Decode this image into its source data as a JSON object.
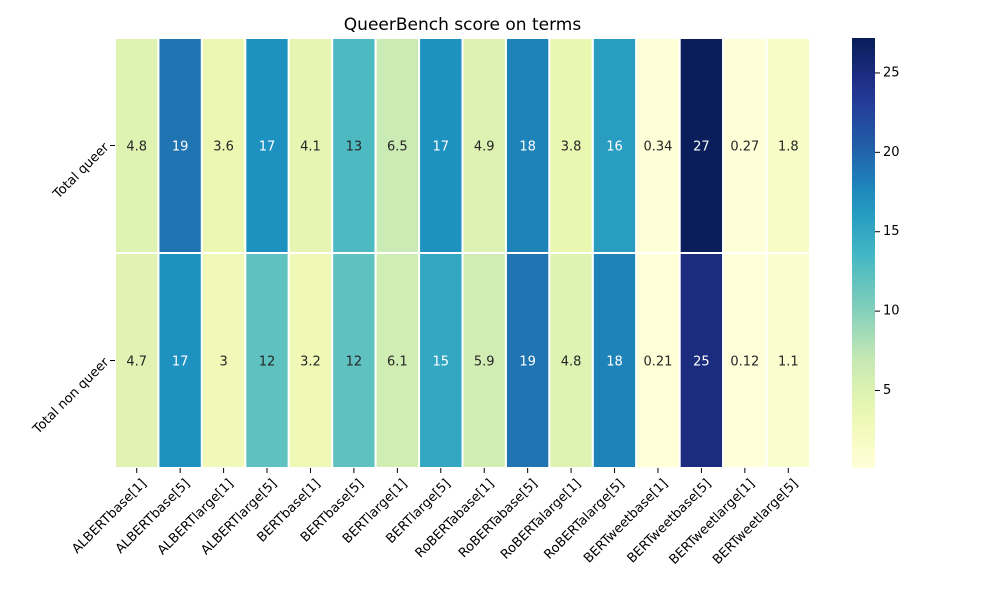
{
  "chart_data": {
    "type": "heatmap",
    "title": "QueerBench score on terms",
    "xlabel": "",
    "ylabel": "",
    "rows": [
      "Total queer",
      "Total non queer"
    ],
    "columns": [
      "ALBERTbase[1]",
      "ALBERTbase[5]",
      "ALBERTlarge[1]",
      "ALBERTlarge[5]",
      "BERTbase[1]",
      "BERTbase[5]",
      "BERTlarge[1]",
      "BERTlarge[5]",
      "RoBERTabase[1]",
      "RoBERTabase[5]",
      "RoBERTalarge[1]",
      "RoBERTalarge[5]",
      "BERTweetbase[1]",
      "BERTweetbase[5]",
      "BERTweetlarge[1]",
      "BERTweetlarge[5]"
    ],
    "values": [
      [
        4.8,
        19,
        3.6,
        17,
        4.1,
        13,
        6.5,
        17,
        4.9,
        18,
        3.8,
        16,
        0.34,
        27,
        0.27,
        1.8
      ],
      [
        4.7,
        17,
        3,
        12,
        3.2,
        12,
        6.1,
        15,
        5.9,
        19,
        4.8,
        18,
        0.21,
        25,
        0.12,
        1.1
      ]
    ],
    "colorbar": {
      "min": 0.12,
      "max": 27.2,
      "ticks": [
        5,
        10,
        15,
        20,
        25
      ],
      "colormap": "YlGnBu"
    },
    "grid": false,
    "legend": "colorbar-right"
  }
}
